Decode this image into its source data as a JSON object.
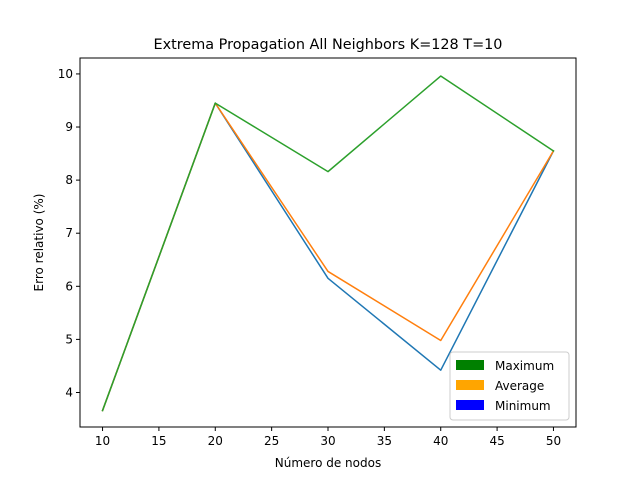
{
  "chart_data": {
    "type": "line",
    "title": "Extrema Propagation All Neighbors K=128 T=10",
    "xlabel": "Número de nodos",
    "ylabel": "Erro relativo (%)",
    "x": [
      10,
      20,
      30,
      40,
      50
    ],
    "xlim": [
      8,
      52
    ],
    "ylim": [
      3.35,
      10.3
    ],
    "xticks": [
      10,
      15,
      20,
      25,
      30,
      35,
      40,
      45,
      50
    ],
    "yticks": [
      4,
      5,
      6,
      7,
      8,
      9,
      10
    ],
    "series": [
      {
        "key": "minimum",
        "color": "#1f77b4",
        "values": [
          3.66,
          9.45,
          6.15,
          4.42,
          8.55
        ]
      },
      {
        "key": "average",
        "color": "#ff7f0e",
        "values": [
          3.66,
          9.45,
          6.28,
          4.98,
          8.55
        ]
      },
      {
        "key": "maximum",
        "color": "#2ca02c",
        "values": [
          3.66,
          9.45,
          8.16,
          9.96,
          8.55
        ]
      }
    ],
    "legend": {
      "position": "lower right",
      "items": [
        {
          "label": "Maximum",
          "color": "#008000"
        },
        {
          "label": "Average",
          "color": "#ffa500"
        },
        {
          "label": "Minimum",
          "color": "#0000ff"
        }
      ]
    },
    "grid": false
  }
}
